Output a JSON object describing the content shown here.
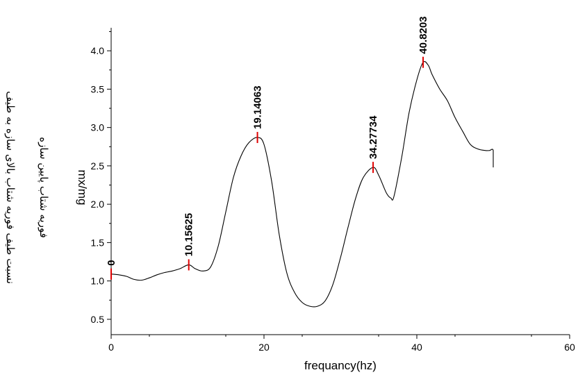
{
  "chart_data": {
    "type": "line",
    "xlabel": "frequancy(hz)",
    "ylabel_lines": [
      "نسبت طیف فوریه شتاب بالای سازه به طیف",
      "فوریه شتاب پایین سازه"
    ],
    "ylabel_unit": "mx/mg",
    "xlim": [
      0,
      60
    ],
    "ylim": [
      0.3,
      4.3
    ],
    "x_ticks": [
      "0",
      "20",
      "40",
      "60"
    ],
    "y_ticks": [
      "0.5",
      "1.0",
      "1.5",
      "2.0",
      "2.5",
      "3.0",
      "3.5",
      "4.0"
    ],
    "grid": false,
    "line_color": "#000000",
    "marker_color": "#e00000",
    "series": [
      {
        "x": [
          0,
          1,
          2,
          3,
          4,
          5,
          6,
          7,
          8,
          9,
          10.15625,
          11,
          12,
          13,
          14,
          15,
          16,
          17,
          18,
          19.14063,
          20,
          21,
          22,
          23,
          24,
          25,
          26,
          27,
          28,
          29,
          30,
          31,
          32,
          33,
          34.27734,
          35,
          36,
          36.6,
          37,
          38,
          39,
          40,
          40.82031,
          41.5,
          42,
          43,
          44,
          45,
          46,
          47,
          48,
          49,
          49.5,
          50,
          50
        ],
        "y": [
          1.09,
          1.08,
          1.06,
          1.02,
          1.01,
          1.04,
          1.08,
          1.11,
          1.13,
          1.16,
          1.21,
          1.16,
          1.13,
          1.18,
          1.45,
          1.9,
          2.35,
          2.63,
          2.8,
          2.87,
          2.78,
          2.3,
          1.6,
          1.1,
          0.85,
          0.72,
          0.67,
          0.67,
          0.74,
          0.95,
          1.3,
          1.7,
          2.08,
          2.35,
          2.48,
          2.38,
          2.15,
          2.08,
          2.1,
          2.6,
          3.2,
          3.62,
          3.85,
          3.81,
          3.69,
          3.5,
          3.35,
          3.13,
          2.95,
          2.78,
          2.72,
          2.7,
          2.7,
          2.7,
          2.48
        ]
      }
    ],
    "peaks": [
      {
        "x": 0,
        "y": 1.09,
        "label": "0"
      },
      {
        "x": 10.15625,
        "y": 1.21,
        "label": "10.15625"
      },
      {
        "x": 19.14063,
        "y": 2.87,
        "label": "19.14063"
      },
      {
        "x": 34.27734,
        "y": 2.48,
        "label": "34.27734"
      },
      {
        "x": 40.82031,
        "y": 3.85,
        "label": "40.8203"
      }
    ]
  }
}
